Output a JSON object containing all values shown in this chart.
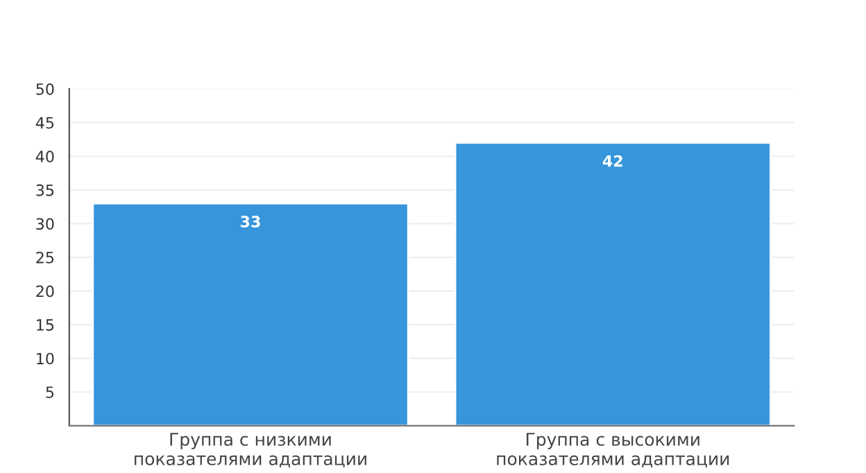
{
  "chart_data": {
    "type": "bar",
    "categories": [
      "Группа с низкими\nпоказателями адаптации",
      "Группа с высокими\nпоказателями адаптации"
    ],
    "values": [
      33,
      42
    ],
    "color": "#3796db",
    "ylim": [
      0,
      50
    ],
    "yticks": [
      {
        "value": 0,
        "label": null
      },
      5,
      10,
      15,
      20,
      25,
      30,
      35,
      40,
      45,
      50
    ],
    "grid": "y",
    "data_labels": true
  }
}
